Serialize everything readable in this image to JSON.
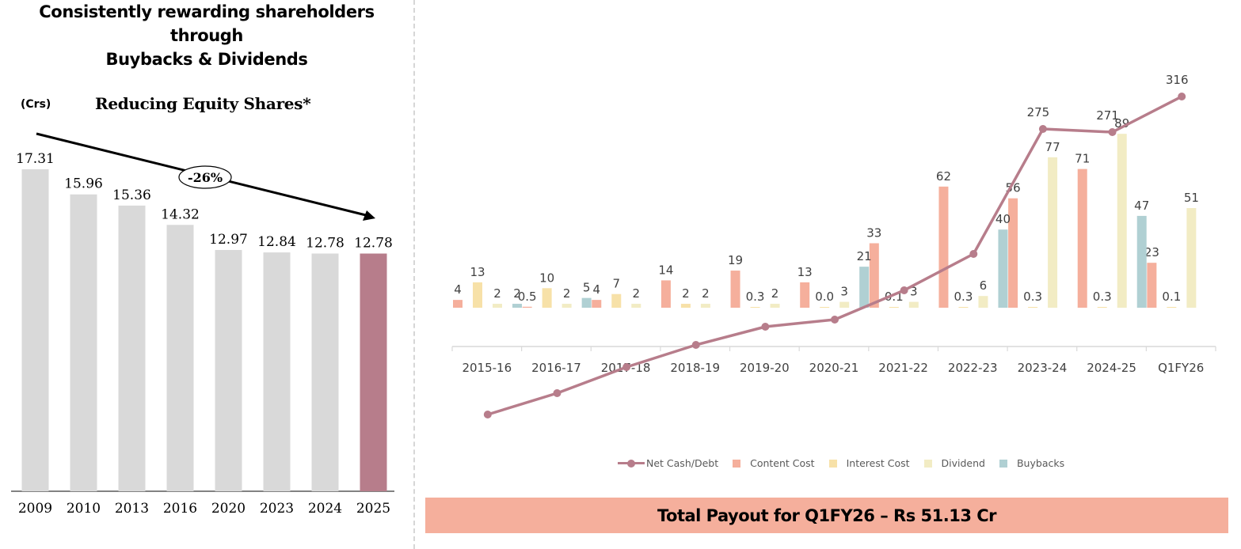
{
  "header": {
    "title_line1": "Consistently rewarding shareholders through",
    "title_line2": "Buybacks & Dividends"
  },
  "banner": {
    "text": "Total Payout for Q1FY26 – Rs 51.13 Cr"
  },
  "colors": {
    "grey_bar": "#d9d9d9",
    "highlight_bar": "#b77d8b",
    "net_cash_line": "#b77d8b",
    "content_cost": "#f5af9c",
    "interest_cost": "#f7e1a8",
    "dividend": "#f2ecc4",
    "buybacks": "#b0d0d3",
    "banner": "#f5af9c",
    "label_text": "#404040"
  },
  "chart_data": [
    {
      "type": "bar",
      "title": "Reducing Equity Shares*",
      "unit_label": "(Crs)",
      "categories": [
        "2009",
        "2010",
        "2013",
        "2016",
        "2020",
        "2023",
        "2024",
        "2025"
      ],
      "values": [
        17.31,
        15.96,
        15.36,
        14.32,
        12.97,
        12.84,
        12.78,
        12.78
      ],
      "value_labels": [
        "17.31",
        "15.96",
        "15.36",
        "14.32",
        "12.97",
        "12.84",
        "12.78",
        "12.78"
      ],
      "highlight_index": 7,
      "annotation": {
        "text": "-26%",
        "type": "downward-arrow"
      },
      "xlabel": "",
      "ylabel": "",
      "ylim": [
        0,
        17.31
      ],
      "grid": false
    },
    {
      "type": "bar+line",
      "title": "",
      "categories": [
        "2015-16",
        "2016-17",
        "2017-18",
        "2018-19",
        "2019-20",
        "2020-21",
        "2021-22",
        "2022-23",
        "2023-24",
        "2024-25",
        "Q1FY26"
      ],
      "series": [
        {
          "name": "Content Cost",
          "type": "bar",
          "values": [
            4,
            0.5,
            4,
            14,
            19,
            13,
            33,
            62,
            56,
            71,
            23
          ],
          "labels": [
            "4",
            "0.5",
            "4",
            "14",
            "19",
            "13",
            "33",
            "62",
            "56",
            "71",
            "23"
          ]
        },
        {
          "name": "Interest Cost",
          "type": "bar",
          "values": [
            13,
            10,
            7,
            2,
            0.3,
            0.0,
            0.1,
            0.3,
            0.3,
            0.3,
            0.1
          ],
          "labels": [
            "13",
            "10",
            "7",
            "2",
            "0.3",
            "0.0",
            "0.1",
            "0.3",
            "0.3",
            "0.3",
            "0.1"
          ]
        },
        {
          "name": "Dividend",
          "type": "bar",
          "values": [
            2,
            2,
            2,
            2,
            2,
            3,
            3,
            6,
            77,
            89,
            51
          ],
          "labels": [
            "2",
            "2",
            "2",
            "2",
            "2",
            "3",
            "3",
            "6",
            "77",
            "89",
            "51"
          ]
        },
        {
          "name": "Buybacks",
          "type": "bar",
          "values": [
            2,
            5,
            null,
            null,
            null,
            21,
            null,
            40,
            null,
            47,
            null
          ],
          "labels": [
            "2",
            "5",
            "",
            "",
            "",
            "21",
            "",
            "40",
            "",
            "47",
            ""
          ]
        },
        {
          "name": "Net Cash/Debt",
          "type": "line",
          "values": [
            -86,
            -59,
            -26,
            2,
            25,
            34,
            71,
            117,
            275,
            271,
            316
          ],
          "labels": [
            "",
            "",
            "",
            "",
            "",
            "",
            "",
            "",
            "275",
            "271",
            "316"
          ]
        }
      ],
      "legend": [
        "Net Cash/Debt",
        "Content Cost",
        "Interest Cost",
        "Dividend",
        "Buybacks"
      ],
      "legend_position": "bottom",
      "xlabel": "",
      "ylabel": "",
      "bar_ylim": [
        0,
        89
      ],
      "line_ylim": [
        -86,
        316
      ],
      "grid": false
    }
  ]
}
